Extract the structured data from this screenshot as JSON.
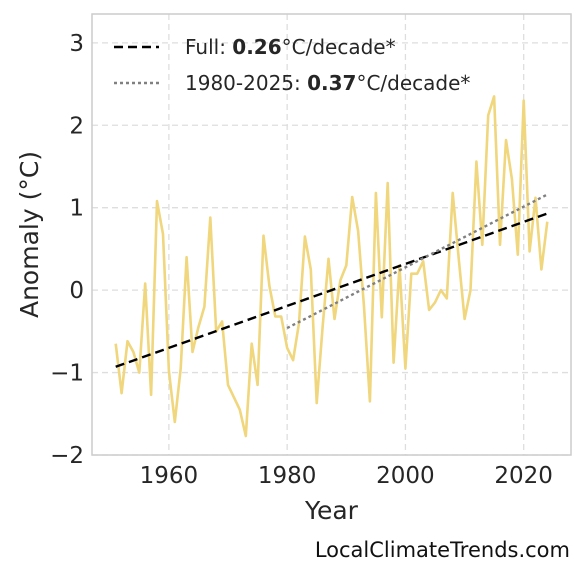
{
  "chart_data": {
    "type": "line",
    "xlabel": "Year",
    "ylabel": "Anomaly (°C)",
    "xlim": [
      1947,
      2028
    ],
    "ylim": [
      -2.0,
      3.35
    ],
    "xticks": [
      1960,
      1980,
      2000,
      2020
    ],
    "yticks": [
      -2,
      -1,
      0,
      1,
      2,
      3
    ],
    "ytick_labels": [
      "−2",
      "−1",
      "0",
      "1",
      "2",
      "3"
    ],
    "grid": true,
    "legend_position": "top-left",
    "series": [
      {
        "kind": "observed",
        "color": "#f0d67c",
        "x": [
          1951,
          1952,
          1953,
          1954,
          1955,
          1956,
          1957,
          1958,
          1959,
          1960,
          1961,
          1962,
          1963,
          1964,
          1965,
          1966,
          1967,
          1968,
          1969,
          1970,
          1971,
          1972,
          1973,
          1974,
          1975,
          1976,
          1977,
          1978,
          1979,
          1980,
          1981,
          1982,
          1983,
          1984,
          1985,
          1986,
          1987,
          1988,
          1989,
          1990,
          1991,
          1992,
          1993,
          1994,
          1995,
          1996,
          1997,
          1998,
          1999,
          2000,
          2001,
          2002,
          2003,
          2004,
          2005,
          2006,
          2007,
          2008,
          2009,
          2010,
          2011,
          2012,
          2013,
          2014,
          2015,
          2016,
          2017,
          2018,
          2019,
          2020,
          2021,
          2022,
          2023,
          2024
        ],
        "y": [
          -0.65,
          -1.25,
          -0.62,
          -0.75,
          -1.0,
          0.08,
          -1.27,
          1.08,
          0.68,
          -0.98,
          -1.6,
          -0.95,
          0.4,
          -0.75,
          -0.45,
          -0.2,
          0.88,
          -0.5,
          -0.38,
          -1.15,
          -1.3,
          -1.45,
          -1.77,
          -0.65,
          -1.15,
          0.66,
          0.05,
          -0.32,
          -0.32,
          -0.7,
          -0.85,
          -0.4,
          0.65,
          0.25,
          -1.37,
          -0.45,
          0.38,
          -0.35,
          0.12,
          0.3,
          1.13,
          0.72,
          -0.2,
          -1.35,
          1.18,
          -0.33,
          1.3,
          -0.88,
          0.3,
          -0.95,
          0.2,
          0.2,
          0.35,
          -0.24,
          -0.15,
          0.0,
          -0.1,
          1.18,
          0.4,
          -0.35,
          0.0,
          1.56,
          0.55,
          2.12,
          2.35,
          0.55,
          1.82,
          1.35,
          0.43,
          2.3,
          0.47,
          1.12,
          0.25,
          0.83
        ]
      },
      {
        "kind": "trend",
        "label_prefix": "Full: ",
        "label_value": "0.26",
        "label_suffix": "°C/decade*",
        "color": "#000000",
        "style": "dashed",
        "x": [
          1951,
          2024
        ],
        "y": [
          -0.93,
          0.93
        ]
      },
      {
        "kind": "trend",
        "label_prefix": "1980-2025: ",
        "label_value": "0.37",
        "label_suffix": "°C/decade*",
        "color": "#808080",
        "style": "dotted",
        "x": [
          1980,
          2024
        ],
        "y": [
          -0.46,
          1.16
        ]
      }
    ]
  },
  "watermark": "LocalClimateTrends.com"
}
